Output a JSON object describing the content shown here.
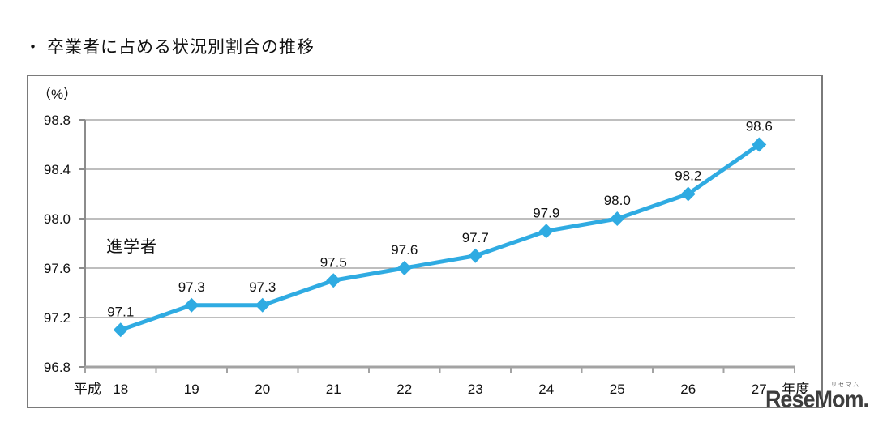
{
  "page": {
    "bullet": "・",
    "title": "卒業者に占める状況別割合の推移"
  },
  "watermark": {
    "brand": "ReseMom",
    "dot": ".",
    "kana": "リセマム"
  },
  "chart_data": {
    "type": "line",
    "title": "卒業者に占める状況別割合の推移",
    "unit_label": "（%）",
    "series_label": "進学者",
    "x_prefix": "平成",
    "x_suffix": "年度",
    "categories": [
      "18",
      "19",
      "20",
      "21",
      "22",
      "23",
      "24",
      "25",
      "26",
      "27"
    ],
    "values": [
      97.1,
      97.3,
      97.3,
      97.5,
      97.6,
      97.7,
      97.9,
      98.0,
      98.2,
      98.6
    ],
    "xlabel": "年度",
    "ylabel": "%",
    "ylim": [
      96.8,
      98.8
    ],
    "yticks": [
      98.8,
      98.4,
      98.0,
      97.6,
      97.2,
      96.8
    ],
    "grid": true,
    "legend_position": "none",
    "line_color": "#2FABE2",
    "grid_color": "#969696",
    "axis_color": "#A3A3A3",
    "yaxis_color": "#8C8C8C",
    "label_color": "#111111"
  }
}
